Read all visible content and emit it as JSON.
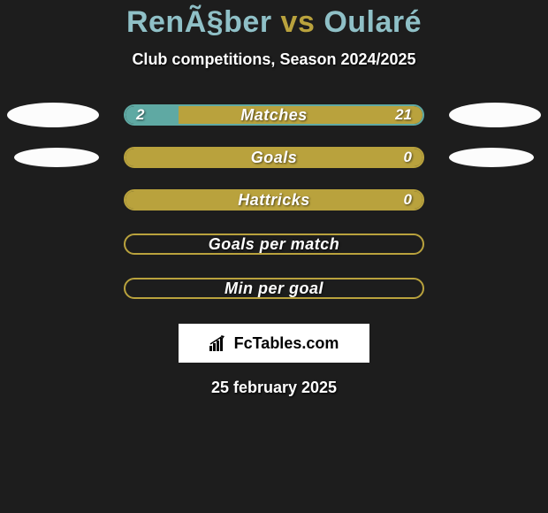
{
  "colors": {
    "background": "#1d1d1d",
    "title_player": "#8fc0c7",
    "title_vs": "#b9a23d",
    "teal": "#5fa9a3",
    "olive": "#b9a23d",
    "white": "#ffffff",
    "oval": "#fcfcfc"
  },
  "title": {
    "player1": "RenÃ§ber",
    "vs": "vs",
    "player2": "Oularé"
  },
  "subtitle": "Club competitions, Season 2024/2025",
  "stats": [
    {
      "label": "Matches",
      "left_value": "2",
      "right_value": "21",
      "border_color": "#5fa9a3",
      "fill_mode": "split",
      "left_fill_color": "#5fa9a3",
      "left_fill_pct": 18,
      "right_fill_color": "#b9a23d",
      "show_left_oval": true,
      "show_right_oval": true
    },
    {
      "label": "Goals",
      "left_value": "",
      "right_value": "0",
      "border_color": "#b9a23d",
      "fill_mode": "full",
      "full_fill_color": "#b9a23d",
      "show_left_oval": true,
      "show_right_oval": true,
      "left_oval_small": true,
      "right_oval_small": true
    },
    {
      "label": "Hattricks",
      "left_value": "",
      "right_value": "0",
      "border_color": "#b9a23d",
      "fill_mode": "full",
      "full_fill_color": "#b9a23d",
      "show_left_oval": false,
      "show_right_oval": false
    },
    {
      "label": "Goals per match",
      "left_value": "",
      "right_value": "",
      "border_color": "#b9a23d",
      "fill_mode": "none",
      "show_left_oval": false,
      "show_right_oval": false
    },
    {
      "label": "Min per goal",
      "left_value": "",
      "right_value": "",
      "border_color": "#b9a23d",
      "fill_mode": "none",
      "show_left_oval": false,
      "show_right_oval": false
    }
  ],
  "logo_text": "FcTables.com",
  "date": "25 february 2025"
}
